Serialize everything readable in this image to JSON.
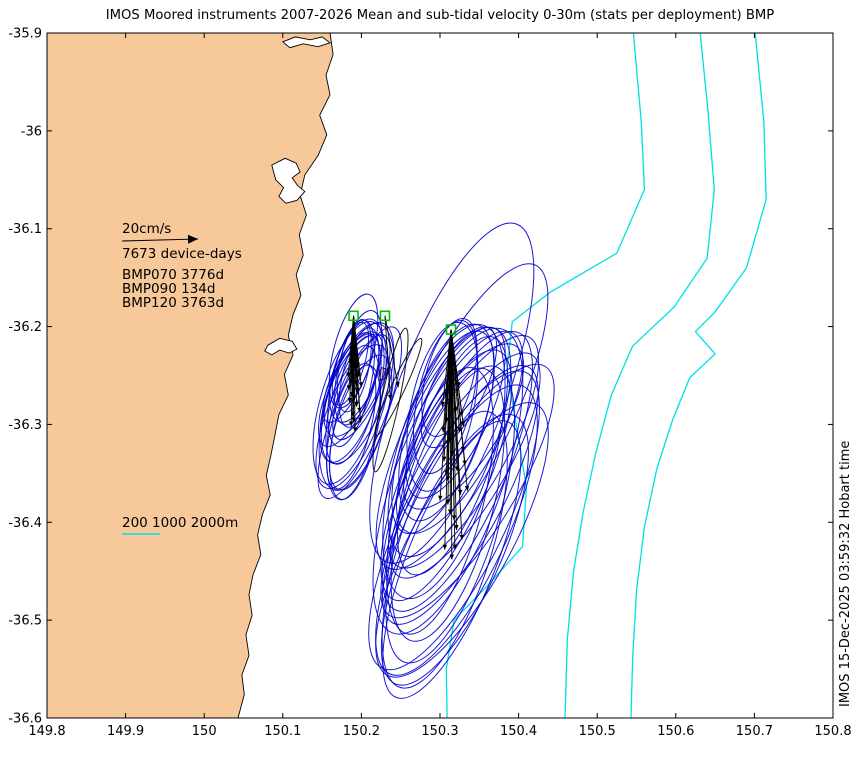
{
  "title": "IMOS Moored instruments 2007-2026 Mean and sub-tidal velocity 0-30m (stats per deployment) BMP",
  "watermark": "IMOS 15-Dec-2025 03:59:32 Hobart time",
  "annotations": {
    "scale_label": "20cm/s",
    "device_days_label": "7673 device-days",
    "mooring_labels": [
      "BMP070 3776d",
      "BMP090 134d",
      "BMP120 3763d"
    ],
    "depth_label": "200 1000 2000m"
  },
  "chart_data": {
    "type": "map-quiver-ellipse",
    "title": "IMOS Moored instruments 2007-2026 Mean and sub-tidal velocity 0-30m (stats per deployment) BMP",
    "xlabel": "",
    "ylabel": "",
    "xlim": [
      149.8,
      150.8
    ],
    "ylim": [
      -36.6,
      -35.9
    ],
    "xticks": [
      149.8,
      149.9,
      150.0,
      150.1,
      150.2,
      150.3,
      150.4,
      150.5,
      150.6,
      150.7,
      150.8
    ],
    "xtick_labels": [
      "149.8",
      "149.9",
      "150",
      "150.1",
      "150.2",
      "150.3",
      "150.4",
      "150.5",
      "150.6",
      "150.7",
      "150.8"
    ],
    "yticks": [
      -35.9,
      -36.0,
      -36.1,
      -36.2,
      -36.3,
      -36.4,
      -36.5,
      -36.6
    ],
    "ytick_labels": [
      "-35.9",
      "-36",
      "-36.1",
      "-36.2",
      "-36.3",
      "-36.4",
      "-36.5",
      "-36.6"
    ],
    "grid": false,
    "scale_cm_per_s": 20,
    "scale_arrow_degrees_lon": 0.1,
    "total_device_days": 7673,
    "contour_depths_m": [
      200,
      1000,
      2000
    ],
    "colors": {
      "land": "#f6c89a",
      "coast": "#000000",
      "contour": "#00e0e0",
      "ellipse_blue": "#0000cd",
      "vector": "#000000",
      "marker": "#00c000",
      "water": "#ffffff"
    },
    "coastline_polygon": [
      [
        150.16,
        -35.9
      ],
      [
        150.164,
        -35.922
      ],
      [
        150.155,
        -35.943
      ],
      [
        150.16,
        -35.963
      ],
      [
        150.147,
        -35.984
      ],
      [
        150.156,
        -36.004
      ],
      [
        150.145,
        -36.025
      ],
      [
        150.128,
        -36.045
      ],
      [
        150.122,
        -36.066
      ],
      [
        150.13,
        -36.086
      ],
      [
        150.121,
        -36.106
      ],
      [
        150.126,
        -36.127
      ],
      [
        150.117,
        -36.147
      ],
      [
        150.123,
        -36.168
      ],
      [
        150.113,
        -36.188
      ],
      [
        150.107,
        -36.209
      ],
      [
        150.113,
        -36.229
      ],
      [
        150.102,
        -36.249
      ],
      [
        150.107,
        -36.27
      ],
      [
        150.095,
        -36.29
      ],
      [
        150.09,
        -36.311
      ],
      [
        150.085,
        -36.331
      ],
      [
        150.079,
        -36.352
      ],
      [
        150.084,
        -36.372
      ],
      [
        150.074,
        -36.392
      ],
      [
        150.068,
        -36.413
      ],
      [
        150.072,
        -36.433
      ],
      [
        150.062,
        -36.454
      ],
      [
        150.057,
        -36.474
      ],
      [
        150.061,
        -36.495
      ],
      [
        150.053,
        -36.515
      ],
      [
        150.057,
        -36.536
      ],
      [
        150.048,
        -36.556
      ],
      [
        150.051,
        -36.576
      ],
      [
        150.043,
        -36.6
      ],
      [
        149.8,
        -36.6
      ],
      [
        149.8,
        -35.9
      ]
    ],
    "water_bodies": [
      [
        [
          150.086,
          -36.035
        ],
        [
          150.103,
          -36.028
        ],
        [
          150.117,
          -36.033
        ],
        [
          150.122,
          -36.042
        ],
        [
          150.112,
          -36.048
        ],
        [
          150.119,
          -36.056
        ],
        [
          150.128,
          -36.062
        ],
        [
          150.118,
          -36.071
        ],
        [
          150.104,
          -36.074
        ],
        [
          150.095,
          -36.067
        ],
        [
          150.101,
          -36.058
        ],
        [
          150.091,
          -36.05
        ]
      ],
      [
        [
          150.081,
          -36.219
        ],
        [
          150.096,
          -36.212
        ],
        [
          150.112,
          -36.215
        ],
        [
          150.118,
          -36.223
        ],
        [
          150.108,
          -36.227
        ],
        [
          150.096,
          -36.224
        ],
        [
          150.086,
          -36.229
        ],
        [
          150.077,
          -36.225
        ]
      ],
      [
        [
          150.1,
          -35.909
        ],
        [
          150.116,
          -35.904
        ],
        [
          150.135,
          -35.907
        ],
        [
          150.15,
          -35.904
        ],
        [
          150.16,
          -35.91
        ],
        [
          150.145,
          -35.914
        ],
        [
          150.126,
          -35.911
        ],
        [
          150.109,
          -35.915
        ]
      ]
    ],
    "islands": [
      [
        [
          150.226,
          -36.242
        ],
        [
          150.234,
          -36.244
        ],
        [
          150.231,
          -36.253
        ],
        [
          150.225,
          -36.255
        ],
        [
          150.222,
          -36.248
        ]
      ]
    ],
    "contours": [
      {
        "depth": 200,
        "points": [
          [
            150.546,
            -35.9
          ],
          [
            150.556,
            -35.99
          ],
          [
            150.56,
            -36.06
          ],
          [
            150.525,
            -36.125
          ],
          [
            150.44,
            -36.165
          ],
          [
            150.392,
            -36.195
          ],
          [
            150.385,
            -36.245
          ],
          [
            150.398,
            -36.305
          ],
          [
            150.41,
            -36.365
          ],
          [
            150.405,
            -36.425
          ],
          [
            150.36,
            -36.465
          ],
          [
            150.318,
            -36.5
          ],
          [
            150.308,
            -36.55
          ],
          [
            150.309,
            -36.6
          ]
        ]
      },
      {
        "depth": 1000,
        "points": [
          [
            150.631,
            -35.9
          ],
          [
            150.641,
            -35.98
          ],
          [
            150.649,
            -36.06
          ],
          [
            150.64,
            -36.13
          ],
          [
            150.598,
            -36.18
          ],
          [
            150.545,
            -36.22
          ],
          [
            150.518,
            -36.27
          ],
          [
            150.498,
            -36.33
          ],
          [
            150.482,
            -36.39
          ],
          [
            150.47,
            -36.45
          ],
          [
            150.462,
            -36.52
          ],
          [
            150.459,
            -36.6
          ]
        ]
      },
      {
        "depth": 2000,
        "points": [
          [
            150.701,
            -35.9
          ],
          [
            150.712,
            -35.99
          ],
          [
            150.715,
            -36.07
          ],
          [
            150.69,
            -36.14
          ],
          [
            150.65,
            -36.185
          ],
          [
            150.625,
            -36.205
          ],
          [
            150.65,
            -36.228
          ],
          [
            150.618,
            -36.252
          ],
          [
            150.596,
            -36.295
          ],
          [
            150.576,
            -36.345
          ],
          [
            150.56,
            -36.405
          ],
          [
            150.55,
            -36.47
          ],
          [
            150.545,
            -36.54
          ],
          [
            150.543,
            -36.6
          ]
        ]
      }
    ],
    "ellipse_format": "[center_lon, center_lat, semi_major_deg, semi_minor_deg, rotation_deg_cw_from_north]; mean velocity vector drawn from mooring to ellipse center",
    "moorings": [
      {
        "name": "BMP070",
        "days": 3776,
        "lon": 150.19,
        "lat": -36.189,
        "ellipse_color": "#0000cd",
        "ellipses": [
          [
            150.19,
            -36.225,
            0.06,
            0.02,
            15
          ],
          [
            150.193,
            -36.245,
            0.055,
            0.022,
            18
          ],
          [
            150.187,
            -36.258,
            0.066,
            0.02,
            12
          ],
          [
            150.195,
            -36.268,
            0.076,
            0.028,
            20
          ],
          [
            150.185,
            -36.278,
            0.086,
            0.03,
            16
          ],
          [
            150.198,
            -36.288,
            0.094,
            0.026,
            22
          ],
          [
            150.19,
            -36.298,
            0.08,
            0.024,
            10
          ],
          [
            150.183,
            -36.252,
            0.05,
            0.016,
            25
          ],
          [
            150.196,
            -36.242,
            0.06,
            0.02,
            14
          ],
          [
            150.188,
            -36.272,
            0.07,
            0.025,
            19
          ],
          [
            150.192,
            -36.308,
            0.07,
            0.022,
            12
          ],
          [
            150.2,
            -36.262,
            0.058,
            0.019,
            24
          ],
          [
            150.186,
            -36.238,
            0.044,
            0.014,
            17
          ],
          [
            150.194,
            -36.282,
            0.088,
            0.032,
            15
          ],
          [
            150.189,
            -36.292,
            0.078,
            0.027,
            21
          ],
          [
            150.197,
            -36.252,
            0.052,
            0.017,
            13
          ],
          [
            150.184,
            -36.265,
            0.062,
            0.021,
            23
          ],
          [
            150.191,
            -36.24,
            0.048,
            0.015,
            11
          ],
          [
            150.199,
            -36.298,
            0.072,
            0.024,
            18
          ],
          [
            150.187,
            -36.302,
            0.066,
            0.02,
            14
          ],
          [
            150.193,
            -36.26,
            0.057,
            0.023,
            26
          ],
          [
            150.19,
            -36.275,
            0.068,
            0.022,
            16
          ]
        ]
      },
      {
        "name": "BMP090",
        "days": 134,
        "lon": 150.23,
        "lat": -36.189,
        "ellipse_color": "#000000",
        "ellipses": [
          [
            150.237,
            -36.275,
            0.075,
            0.009,
            12
          ],
          [
            150.247,
            -36.262,
            0.055,
            0.007,
            25
          ]
        ]
      },
      {
        "name": "BMP120",
        "days": 3763,
        "lon": 150.314,
        "lat": -36.203,
        "ellipse_color": "#0000cd",
        "ellipses": [
          [
            150.315,
            -36.268,
            0.185,
            0.055,
            21
          ],
          [
            150.32,
            -36.288,
            0.095,
            0.034,
            25
          ],
          [
            150.308,
            -36.298,
            0.105,
            0.038,
            18
          ],
          [
            150.325,
            -36.308,
            0.115,
            0.04,
            28
          ],
          [
            150.312,
            -36.318,
            0.125,
            0.045,
            22
          ],
          [
            150.33,
            -36.328,
            0.135,
            0.042,
            30
          ],
          [
            150.305,
            -36.338,
            0.145,
            0.05,
            16
          ],
          [
            150.322,
            -36.348,
            0.155,
            0.048,
            24
          ],
          [
            150.31,
            -36.358,
            0.165,
            0.055,
            20
          ],
          [
            150.335,
            -36.368,
            0.15,
            0.046,
            32
          ],
          [
            150.3,
            -36.378,
            0.14,
            0.044,
            14
          ],
          [
            150.318,
            -36.398,
            0.168,
            0.052,
            26
          ],
          [
            150.328,
            -36.418,
            0.158,
            0.05,
            29
          ],
          [
            150.306,
            -36.428,
            0.148,
            0.047,
            18
          ],
          [
            150.315,
            -36.438,
            0.152,
            0.045,
            22
          ],
          [
            150.312,
            -36.252,
            0.062,
            0.024,
            15
          ],
          [
            150.324,
            -36.262,
            0.068,
            0.026,
            27
          ],
          [
            150.303,
            -36.282,
            0.088,
            0.032,
            12
          ],
          [
            150.33,
            -36.302,
            0.098,
            0.036,
            33
          ],
          [
            150.316,
            -36.332,
            0.128,
            0.04,
            19
          ],
          [
            150.308,
            -36.352,
            0.138,
            0.043,
            23
          ],
          [
            150.326,
            -36.372,
            0.148,
            0.044,
            28
          ],
          [
            150.313,
            -36.392,
            0.158,
            0.049,
            17
          ],
          [
            150.321,
            -36.408,
            0.162,
            0.051,
            25
          ],
          [
            150.304,
            -36.308,
            0.11,
            0.037,
            21
          ],
          [
            150.332,
            -36.342,
            0.132,
            0.041,
            31
          ],
          [
            150.31,
            -36.382,
            0.144,
            0.046,
            15
          ],
          [
            150.319,
            -36.428,
            0.15,
            0.048,
            24
          ],
          [
            150.307,
            -36.272,
            0.08,
            0.028,
            13
          ],
          [
            150.328,
            -36.292,
            0.172,
            0.05,
            26
          ]
        ]
      }
    ]
  }
}
